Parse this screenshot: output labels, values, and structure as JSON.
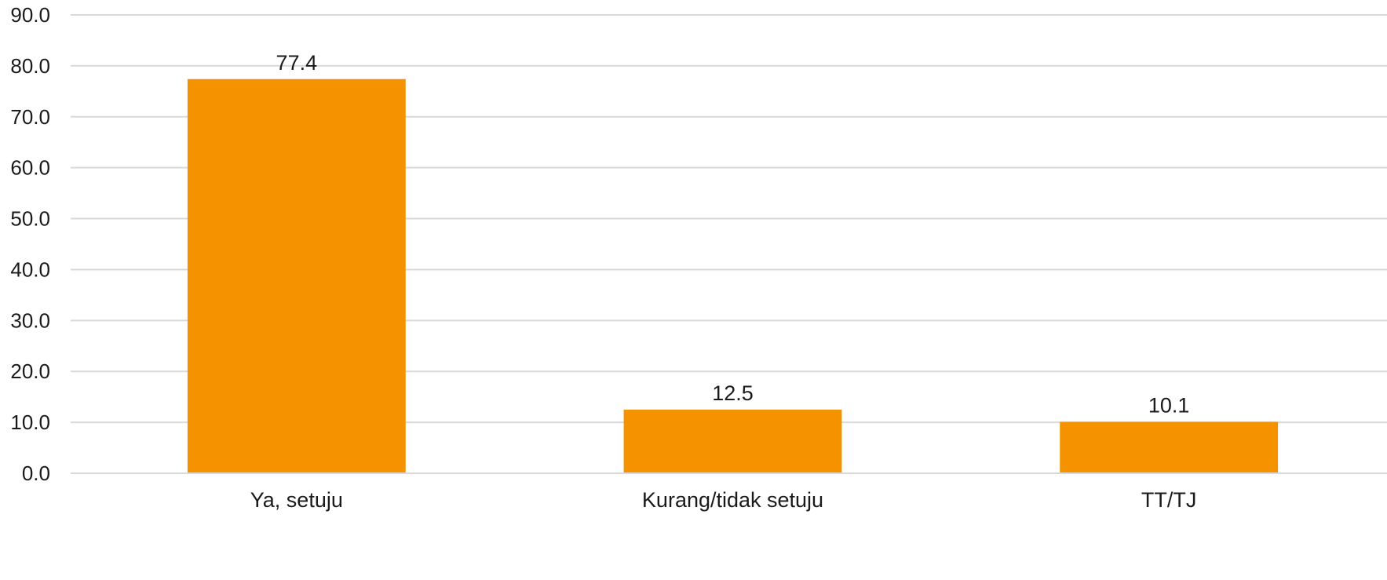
{
  "chart_data": {
    "type": "bar",
    "categories": [
      "Ya, setuju",
      "Kurang/tidak setuju",
      "TT/TJ"
    ],
    "values": [
      77.4,
      12.5,
      10.1
    ],
    "data_labels": [
      "77.4",
      "12.5",
      "10.1"
    ],
    "title": "",
    "xlabel": "",
    "ylabel": "",
    "ylim": [
      0,
      90
    ],
    "yticks": [
      0,
      10,
      20,
      30,
      40,
      50,
      60,
      70,
      80,
      90
    ],
    "ytick_labels": [
      "0.0",
      "10.0",
      "20.0",
      "30.0",
      "40.0",
      "50.0",
      "60.0",
      "70.0",
      "80.0",
      "90.0"
    ],
    "grid": true,
    "legend": "none",
    "bar_color": "#F59200"
  }
}
